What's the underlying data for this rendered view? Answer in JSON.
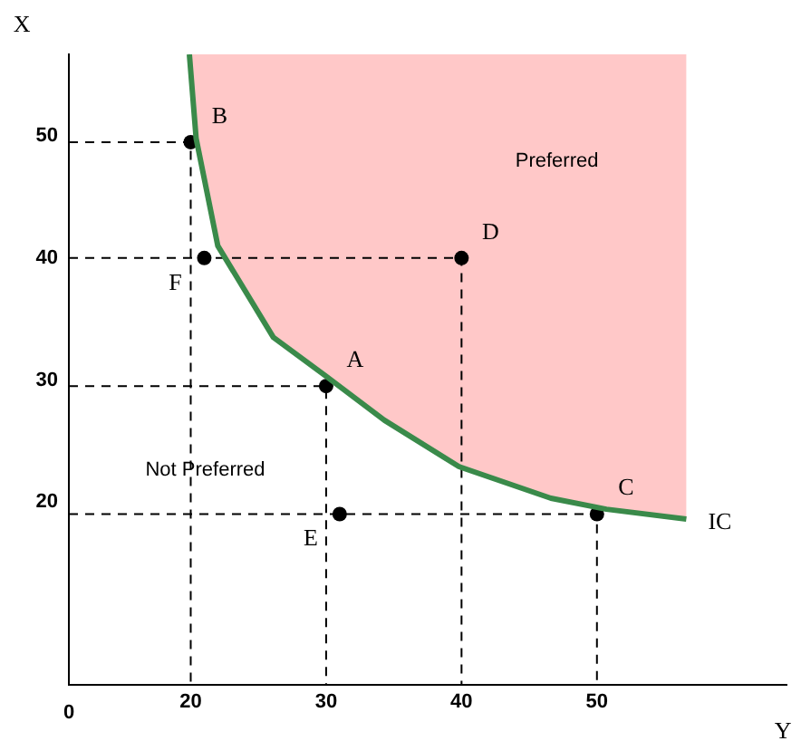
{
  "chart_data": {
    "type": "line",
    "xlabel": "Y",
    "ylabel": "X",
    "xlim": [
      11,
      64
    ],
    "ylim": [
      5,
      56.7
    ],
    "xticks": [
      20,
      30,
      40,
      50
    ],
    "yticks": [
      20,
      30,
      40,
      50
    ],
    "grid": false,
    "legend": false,
    "series": [
      {
        "name": "IC",
        "type": "line",
        "color": "#3a8a4a",
        "marker": "none",
        "line_style": "solid",
        "x": [
          19.9,
          20.4,
          22,
          26.1,
          30,
          34.3,
          39.8,
          46.6,
          50.7,
          56.6
        ],
        "values": [
          56.7,
          49.8,
          41,
          33.5,
          30.3,
          26.7,
          22.9,
          20.3,
          19.4,
          18.6
        ]
      },
      {
        "type": "line",
        "color": "#000000",
        "marker": "none",
        "line_style": "dashed",
        "x": [
          11,
          20,
          20
        ],
        "values": [
          49.5,
          49.5,
          5
        ]
      },
      {
        "type": "line",
        "color": "#000000",
        "marker": "none",
        "line_style": "dashed",
        "x": [
          11,
          40,
          40
        ],
        "values": [
          40,
          40,
          5
        ]
      },
      {
        "type": "line",
        "color": "#000000",
        "marker": "none",
        "line_style": "dashed",
        "x": [
          11,
          30,
          30
        ],
        "values": [
          29.5,
          29.5,
          5
        ]
      },
      {
        "type": "line",
        "color": "#000000",
        "marker": "none",
        "line_style": "dashed",
        "x": [
          11,
          50,
          50
        ],
        "values": [
          19,
          19,
          5
        ]
      },
      {
        "type": "scatter",
        "color": "#000000",
        "marker": "circle",
        "x": [
          20,
          21,
          40,
          30,
          31,
          50
        ],
        "values": [
          49.5,
          40,
          40,
          29.5,
          19,
          19
        ]
      }
    ],
    "annotations": [
      {
        "text": "B",
        "x": 20,
        "y": 49.5
      },
      {
        "text": "F",
        "x": 21,
        "y": 40
      },
      {
        "text": "D",
        "x": 40,
        "y": 40
      },
      {
        "text": "A",
        "x": 30,
        "y": 29.5
      },
      {
        "text": "E",
        "x": 31,
        "y": 19
      },
      {
        "text": "C",
        "x": 50,
        "y": 19
      },
      "Preferred",
      "Not Preferred",
      "0"
    ]
  }
}
